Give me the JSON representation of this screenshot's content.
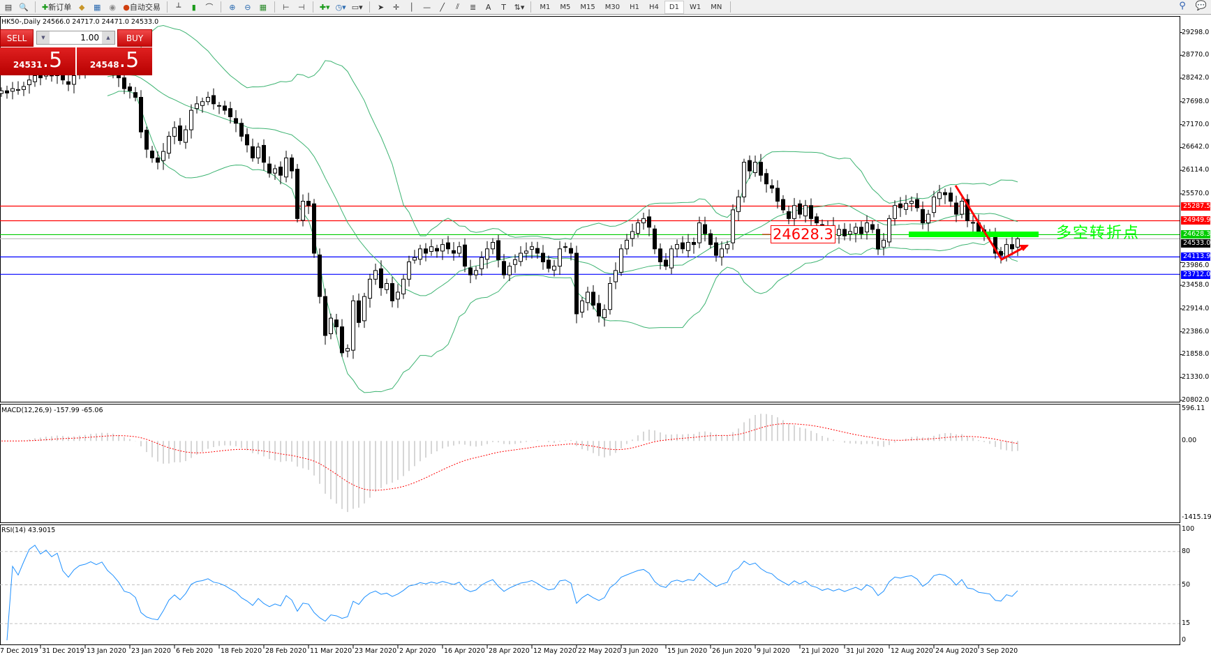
{
  "toolbar": {
    "new_order": "新订单",
    "auto_trading": "自动交易",
    "timeframes": [
      "M1",
      "M5",
      "M15",
      "M30",
      "H1",
      "H4",
      "D1",
      "W1",
      "MN"
    ],
    "active_timeframe": "D1"
  },
  "chart": {
    "title": "HK50-,Daily  24566.0 24717.0 24471.0 24533.0",
    "price_axis": [
      "29298.0",
      "28770.0",
      "28242.0",
      "27698.0",
      "27170.0",
      "26642.0",
      "26114.0",
      "25570.0",
      "23986.0",
      "23458.0",
      "22914.0",
      "22386.0",
      "21858.0",
      "21330.0",
      "20802.0"
    ],
    "levels": [
      {
        "price": "25287.5",
        "color": "#ff0000"
      },
      {
        "price": "24949.9",
        "color": "#ff0000"
      },
      {
        "price": "24628.3",
        "color": "#00cc00"
      },
      {
        "price": "24533.0",
        "color": "#c0c0c0",
        "tag": "#000000"
      },
      {
        "price": "24113.9",
        "color": "#0000ff"
      },
      {
        "price": "23712.0",
        "color": "#0000ff"
      }
    ],
    "annotation": "多空转折点",
    "price_box": "24628.3",
    "bands_color": "#3cb371",
    "dates": [
      "7 Dec 2019",
      "31 Dec 2019",
      "13 Jan 2020",
      "23 Jan 2020",
      "6 Feb 2020",
      "18 Feb 2020",
      "28 Feb 2020",
      "11 Mar 2020",
      "23 Mar 2020",
      "2 Apr 2020",
      "16 Apr 2020",
      "28 Apr 2020",
      "12 May 2020",
      "22 May 2020",
      "3 Jun 2020",
      "15 Jun 2020",
      "26 Jun 2020",
      "9 Jul 2020",
      "21 Jul 2020",
      "31 Jul 2020",
      "12 Aug 2020",
      "24 Aug 2020",
      "3 Sep 2020"
    ],
    "closes": [
      27950,
      27900,
      28000,
      27980,
      28050,
      28200,
      28300,
      28250,
      28350,
      28300,
      28400,
      28200,
      28100,
      28300,
      28450,
      28500,
      28600,
      28550,
      28650,
      28500,
      28400,
      28250,
      28000,
      27950,
      27800,
      27000,
      26600,
      26400,
      26300,
      26550,
      26900,
      27100,
      26800,
      27050,
      27500,
      27650,
      27700,
      27800,
      27650,
      27600,
      27500,
      27350,
      27200,
      26900,
      26700,
      26400,
      26650,
      26300,
      26050,
      26150,
      26000,
      26400,
      26100,
      25000,
      25400,
      25300,
      24200,
      23200,
      22300,
      22700,
      22500,
      21900,
      22000,
      23100,
      22600,
      23200,
      23600,
      23800,
      23400,
      23500,
      23100,
      23300,
      23600,
      24000,
      24100,
      24300,
      24200,
      24350,
      24250,
      24400,
      24300,
      24200,
      24350,
      23900,
      23700,
      23800,
      24100,
      24300,
      24450,
      24050,
      23700,
      23900,
      24050,
      24200,
      24250,
      24350,
      24200,
      24000,
      23850,
      23900,
      24300,
      24350,
      24200,
      22800,
      23100,
      23300,
      23000,
      22750,
      22900,
      23500,
      23800,
      24300,
      24500,
      24700,
      24900,
      25000,
      24800,
      24300,
      24000,
      23900,
      24300,
      24400,
      24300,
      24450,
      24400,
      24900,
      24650,
      24400,
      24150,
      24300,
      24400,
      25200,
      25500,
      26300,
      26100,
      26300,
      26000,
      25800,
      25700,
      25400,
      25200,
      25000,
      25300,
      25100,
      25300,
      25000,
      24900,
      24700,
      24800,
      24650,
      24750,
      24600,
      24700,
      24800,
      24650,
      24900,
      24750,
      24300,
      24500,
      25000,
      25300,
      25250,
      25350,
      25400,
      25250,
      24900,
      25100,
      25500,
      25600,
      25550,
      25400,
      25100,
      25400,
      24950,
      24900,
      24700,
      24650,
      24600,
      24200,
      24150,
      24400,
      24300,
      24533
    ]
  },
  "trade_panel": {
    "sell_label": "SELL",
    "buy_label": "BUY",
    "lots": "1.00",
    "sell_price_main": "24531",
    "sell_price_pip": ".5",
    "buy_price_main": "24548",
    "buy_price_pip": ".5"
  },
  "macd": {
    "label": "MACD(12,26,9) -157.99 -65.06",
    "axis": [
      "596.11",
      "0.00",
      "-1415.19"
    ]
  },
  "rsi": {
    "label": "RSI(14) 43.9015",
    "axis": [
      "100",
      "80",
      "50",
      "15",
      "0"
    ]
  }
}
